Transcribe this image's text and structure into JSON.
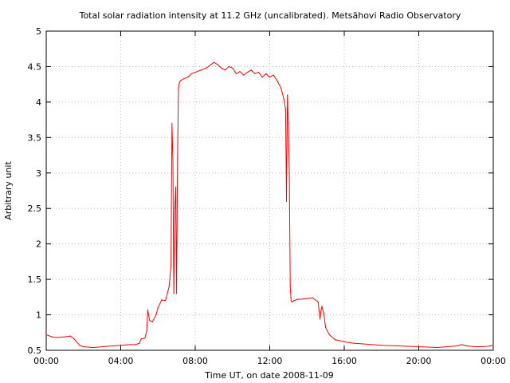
{
  "chart_data": {
    "type": "line",
    "title": "Total solar radiation intensity at 11.2 GHz (uncalibrated). Metsähovi Radio Observatory",
    "xlabel": "Time UT, on date 2008-11-09",
    "ylabel": "Arbitrary unit",
    "xlim": [
      0,
      24
    ],
    "ylim": [
      0.5,
      5
    ],
    "x_ticks": [
      {
        "value": 0,
        "label": "00:00"
      },
      {
        "value": 4,
        "label": "04:00"
      },
      {
        "value": 8,
        "label": "08:00"
      },
      {
        "value": 12,
        "label": "12:00"
      },
      {
        "value": 16,
        "label": "16:00"
      },
      {
        "value": 20,
        "label": "20:00"
      },
      {
        "value": 24,
        "label": "00:00"
      }
    ],
    "y_ticks": [
      {
        "value": 0.5,
        "label": "0.5"
      },
      {
        "value": 1,
        "label": "1"
      },
      {
        "value": 1.5,
        "label": "1.5"
      },
      {
        "value": 2,
        "label": "2"
      },
      {
        "value": 2.5,
        "label": "2.5"
      },
      {
        "value": 3,
        "label": "3"
      },
      {
        "value": 3.5,
        "label": "3.5"
      },
      {
        "value": 4,
        "label": "4"
      },
      {
        "value": 4.5,
        "label": "4.5"
      },
      {
        "value": 5,
        "label": "5"
      }
    ],
    "grid": true,
    "line_color": "#ff0000",
    "series": [
      {
        "x": [
          0.0,
          0.3,
          0.6,
          1.0,
          1.3,
          1.5,
          1.8,
          2.0,
          2.5,
          3.0,
          3.5,
          4.0,
          4.5,
          4.8,
          5.0,
          5.1,
          5.3,
          5.4,
          5.45,
          5.55,
          5.7,
          5.9,
          6.0,
          6.2,
          6.4,
          6.5,
          6.6,
          6.65,
          6.7,
          6.75,
          6.8,
          6.85,
          6.9,
          6.95,
          7.0,
          7.05,
          7.1,
          7.15,
          7.2,
          7.4,
          7.6,
          7.8,
          8.0,
          8.3,
          8.6,
          8.8,
          9.0,
          9.2,
          9.4,
          9.6,
          9.8,
          10.0,
          10.2,
          10.4,
          10.6,
          10.8,
          11.0,
          11.2,
          11.4,
          11.6,
          11.8,
          12.0,
          12.2,
          12.4,
          12.6,
          12.75,
          12.85,
          12.9,
          12.95,
          13.0,
          13.05,
          13.1,
          13.15,
          13.2,
          13.3,
          13.5,
          13.7,
          14.0,
          14.3,
          14.6,
          14.7,
          14.75,
          14.8,
          14.9,
          15.0,
          15.2,
          15.5,
          16.0,
          16.5,
          17.0,
          18.0,
          19.0,
          20.0,
          21.0,
          21.5,
          22.0,
          22.3,
          22.6,
          23.0,
          23.5,
          23.8,
          24.0
        ],
        "values": [
          0.72,
          0.69,
          0.68,
          0.69,
          0.7,
          0.66,
          0.57,
          0.55,
          0.54,
          0.55,
          0.56,
          0.57,
          0.58,
          0.58,
          0.6,
          0.66,
          0.67,
          0.78,
          1.07,
          0.92,
          0.9,
          1.0,
          1.1,
          1.21,
          1.2,
          1.3,
          1.4,
          1.55,
          1.7,
          3.7,
          3.2,
          1.3,
          2.5,
          2.8,
          1.3,
          3.2,
          4.2,
          4.27,
          4.3,
          4.33,
          4.35,
          4.4,
          4.42,
          4.45,
          4.48,
          4.52,
          4.56,
          4.53,
          4.48,
          4.45,
          4.5,
          4.48,
          4.4,
          4.43,
          4.38,
          4.42,
          4.45,
          4.4,
          4.42,
          4.35,
          4.4,
          4.35,
          4.38,
          4.3,
          4.2,
          4.05,
          3.9,
          2.6,
          4.1,
          3.7,
          3.0,
          1.4,
          1.2,
          1.18,
          1.2,
          1.22,
          1.22,
          1.23,
          1.24,
          1.18,
          0.94,
          1.05,
          1.12,
          1.02,
          0.82,
          0.72,
          0.65,
          0.62,
          0.6,
          0.59,
          0.57,
          0.56,
          0.55,
          0.54,
          0.55,
          0.56,
          0.58,
          0.56,
          0.55,
          0.55,
          0.56,
          0.57
        ]
      }
    ]
  }
}
